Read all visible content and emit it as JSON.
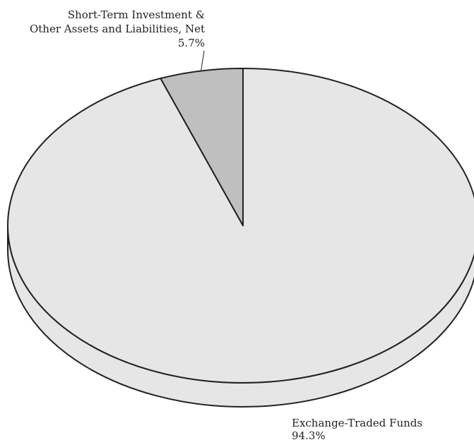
{
  "chart_data": {
    "type": "pie",
    "style": "3d-tilted",
    "slices": [
      {
        "label_lines": [
          "Exchange-Traded Funds"
        ],
        "value": 94.3,
        "value_label": "94.3%",
        "color": "#e6e6e6"
      },
      {
        "label_lines": [
          "Short-Term Investment &",
          "Other Assets and Liabilities, Net"
        ],
        "value": 5.7,
        "value_label": "5.7%",
        "color": "#bfbfbf"
      }
    ],
    "side_color": "#e6e6e6",
    "edge_color": "#222222",
    "legend": "none"
  }
}
